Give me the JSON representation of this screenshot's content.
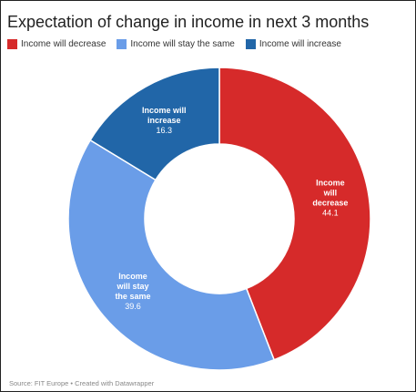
{
  "title": "Expectation of change in income in next 3 months",
  "source": "Source: FIT Europe • Created with Datawrapper",
  "colors": {
    "decrease": "#d62a2a",
    "same": "#6a9de8",
    "increase": "#2166a8"
  },
  "chart_data": {
    "type": "pie",
    "donut": true,
    "title": "Expectation of change in income in next 3 months",
    "legend_position": "top",
    "slices": [
      {
        "name": "Income will decrease",
        "label_lines": [
          "Income",
          "will",
          "decrease"
        ],
        "value": 44.1,
        "value_label": "44.1",
        "color": "#d62a2a"
      },
      {
        "name": "Income will stay the same",
        "label_lines": [
          "Income",
          "will stay",
          "the same"
        ],
        "value": 39.6,
        "value_label": "39.6",
        "color": "#6a9de8"
      },
      {
        "name": "Income will increase",
        "label_lines": [
          "Income will",
          "increase"
        ],
        "value": 16.3,
        "value_label": "16.3",
        "color": "#2166a8"
      }
    ]
  }
}
